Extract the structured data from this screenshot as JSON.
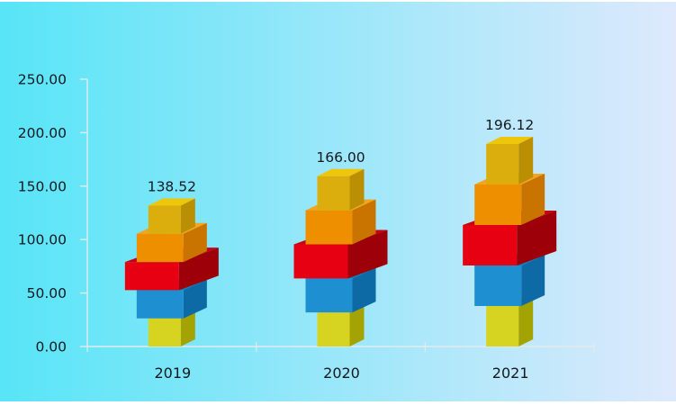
{
  "chart_data": {
    "type": "bar",
    "subtype": "3d-stacked-cube-pictogram-bars",
    "title": "",
    "xlabel": "",
    "ylabel": "",
    "categories": [
      "2019",
      "2020",
      "2021"
    ],
    "values": [
      138.52,
      166.0,
      196.12
    ],
    "data_labels": [
      "138.52",
      "166.00",
      "196.12"
    ],
    "ylim": [
      0,
      250
    ],
    "ytick_step": 50,
    "yticks": [
      {
        "value": 250,
        "label": "250.00"
      },
      {
        "value": 200,
        "label": "200.00"
      },
      {
        "value": 150,
        "label": "150.00"
      },
      {
        "value": 100,
        "label": "100.00"
      },
      {
        "value": 50,
        "label": "50.00"
      },
      {
        "value": 0,
        "label": "0.00"
      }
    ],
    "grid": false,
    "legend": "none",
    "segments_per_bar": 5,
    "segments_bottom_to_top": [
      {
        "name": "yellow-green-cube",
        "front": "#d6d321",
        "top": "#bdbb12",
        "side": "#a3a303"
      },
      {
        "name": "blue-cube",
        "front": "#1e8fd0",
        "top": "#1579b8",
        "side": "#0d6aa4"
      },
      {
        "name": "red-cube",
        "front": "#e60012",
        "top": "#c9000f",
        "side": "#9d0009"
      },
      {
        "name": "orange-cube",
        "front": "#ee8f00",
        "top": "#f4a41d",
        "side": "#c97400"
      },
      {
        "name": "gold-cube",
        "front": "#dcae0d",
        "top": "#eec60a",
        "side": "#bb8f04"
      }
    ],
    "colors": {
      "background_gradient_left": "#57e5f7",
      "background_gradient_right": "#dee9fc",
      "axis_line": "#e3ebee",
      "text": "#14181f",
      "page_edge": "#ffffff"
    }
  }
}
